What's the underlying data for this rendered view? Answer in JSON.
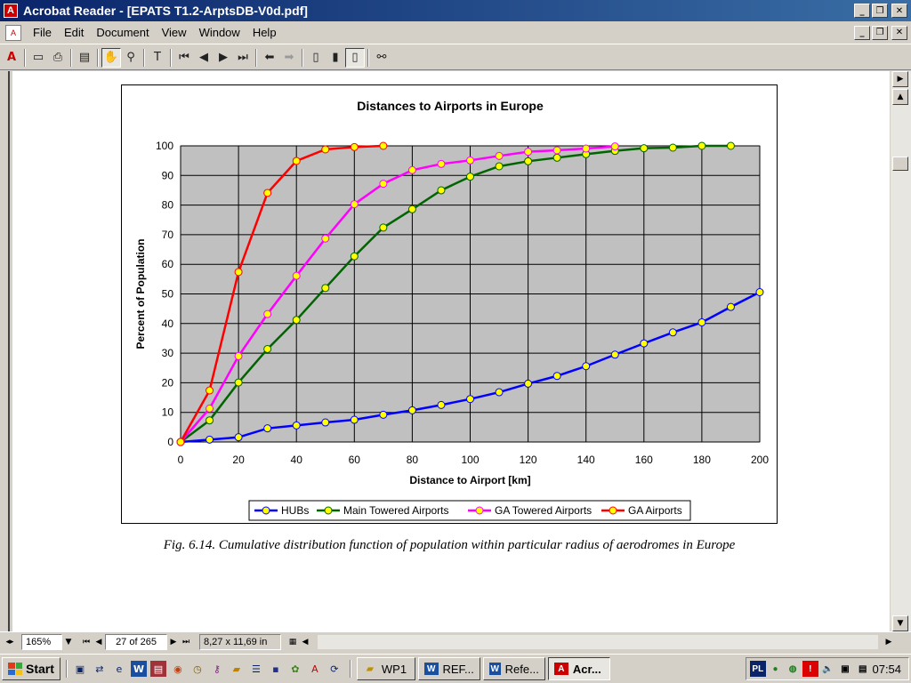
{
  "window": {
    "title": "Acrobat Reader - [EPATS T1.2-ArptsDB-V0d.pdf]",
    "app_icon": "acrobat-icon",
    "controls": [
      "minimize-icon",
      "restore-icon",
      "close-icon"
    ]
  },
  "menu": {
    "items": [
      "File",
      "Edit",
      "Document",
      "View",
      "Window",
      "Help"
    ]
  },
  "toolbar": {
    "icons": [
      "acrobat-logo-icon",
      "open-icon",
      "print-icon",
      "show-navigation-icon",
      "hand-tool-icon",
      "zoom-tool-icon",
      "text-select-icon",
      "first-page-icon",
      "previous-page-icon",
      "next-page-icon",
      "last-page-icon",
      "go-back-icon",
      "go-forward-icon",
      "actual-size-icon",
      "fit-page-icon",
      "fit-width-icon",
      "find-icon"
    ]
  },
  "document": {
    "caption": "Fig. 6.14. Cumulative distribution function of population within particular radius of aerodromes in Europe"
  },
  "chart_data": {
    "type": "line",
    "title": "Distances to Airports in Europe",
    "xlabel": "Distance to Airport [km]",
    "ylabel": "Percent of Population",
    "xlim": [
      0,
      200
    ],
    "ylim": [
      0,
      100
    ],
    "xticks": [
      0,
      20,
      40,
      60,
      80,
      100,
      120,
      140,
      160,
      180,
      200
    ],
    "yticks": [
      0,
      10,
      20,
      30,
      40,
      50,
      60,
      70,
      80,
      90,
      100
    ],
    "grid": true,
    "legend": "bottom",
    "plot_bg": "#c0c0c0",
    "marker_color": "#ffff00",
    "series": [
      {
        "name": "HUBs",
        "color": "#0000ff",
        "x": [
          0,
          10,
          20,
          30,
          40,
          50,
          60,
          70,
          80,
          90,
          100,
          110,
          120,
          130,
          140,
          150,
          160,
          170,
          180,
          190,
          200
        ],
        "y": [
          0,
          0.8,
          1.6,
          4.6,
          5.6,
          6.6,
          7.5,
          9.2,
          10.7,
          12.5,
          14.5,
          16.8,
          19.7,
          22.3,
          25.6,
          29.5,
          33.3,
          37.0,
          40.4,
          45.6,
          50.6
        ]
      },
      {
        "name": "Main Towered Airports",
        "color": "#006400",
        "x": [
          0,
          10,
          20,
          30,
          40,
          50,
          60,
          70,
          80,
          90,
          100,
          110,
          120,
          130,
          140,
          150,
          160,
          170,
          180,
          190
        ],
        "y": [
          0,
          7.3,
          20.1,
          31.4,
          41.2,
          52.0,
          62.7,
          72.4,
          78.6,
          85.0,
          89.6,
          93.1,
          94.8,
          96.0,
          97.2,
          98.3,
          99.2,
          99.4,
          100,
          100
        ]
      },
      {
        "name": "GA Towered Airports",
        "color": "#ff00ff",
        "x": [
          0,
          10,
          20,
          30,
          40,
          50,
          60,
          70,
          80,
          90,
          100,
          110,
          120,
          130,
          140,
          150
        ],
        "y": [
          0,
          11.3,
          29.0,
          43.2,
          56.1,
          68.7,
          80.3,
          87.2,
          91.8,
          93.9,
          95.1,
          96.6,
          98.0,
          98.5,
          99.1,
          99.8
        ]
      },
      {
        "name": "GA Airports",
        "color": "#ff0000",
        "x": [
          0,
          10,
          20,
          30,
          40,
          50,
          60,
          70
        ],
        "y": [
          0,
          17.4,
          57.4,
          84.1,
          94.9,
          98.8,
          99.6,
          100
        ]
      }
    ]
  },
  "status": {
    "zoom": "165%",
    "page": "27 of 265",
    "page_size": "8,27 x 11,69 in"
  },
  "taskbar": {
    "start_label": "Start",
    "quick_launch": [
      "show-desktop-icon",
      "network-icon",
      "internet-explorer-icon",
      "word-icon",
      "access-icon",
      "powerpoint-icon",
      "clock-app-icon",
      "tool-icon",
      "folder-icon",
      "contacts-icon",
      "save-icon",
      "pinboard-icon",
      "acrobat-icon",
      "update-icon"
    ],
    "tasks": [
      {
        "label": "WP1",
        "icon": "folder-icon",
        "active": false
      },
      {
        "label": "REF...",
        "icon": "word-icon",
        "active": false
      },
      {
        "label": "Refe...",
        "icon": "word-icon",
        "active": false
      },
      {
        "label": "Acr...",
        "icon": "acrobat-icon",
        "active": true
      }
    ],
    "tray": {
      "language": "PL",
      "clock": "07:54"
    }
  }
}
